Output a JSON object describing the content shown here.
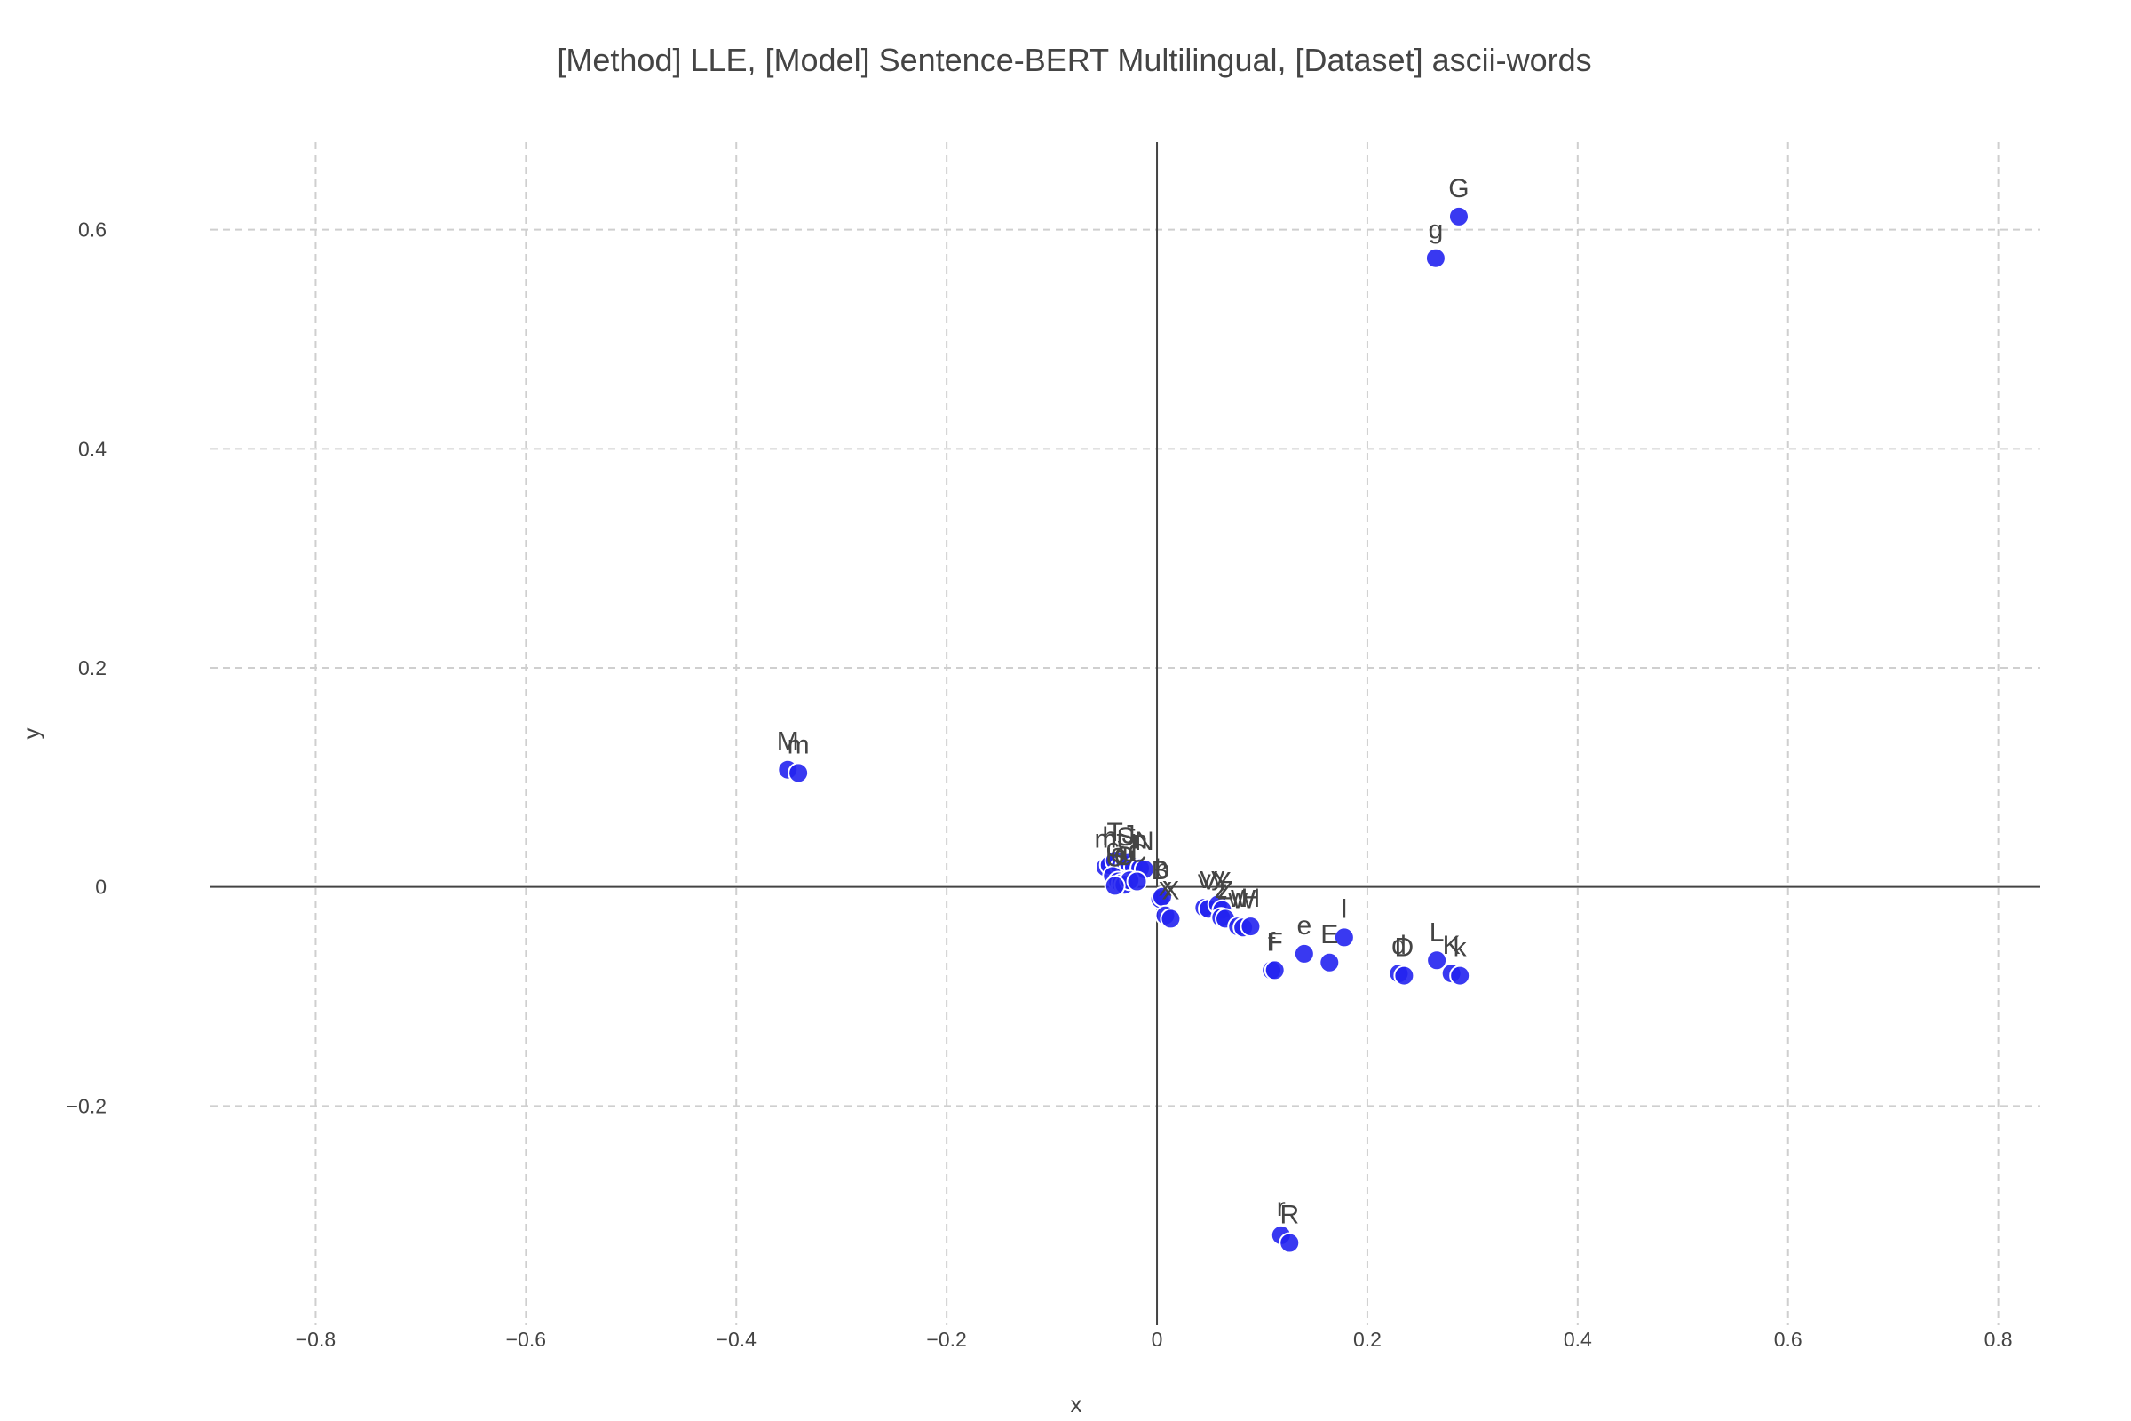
{
  "chart_data": {
    "type": "scatter",
    "title": "[Method] LLE, [Model] Sentence-BERT Multilingual, [Dataset] ascii-words",
    "xlabel": "x",
    "ylabel": "y",
    "xlim": [
      -0.9,
      0.84
    ],
    "ylim": [
      -0.4,
      0.68
    ],
    "x_ticks": [
      -0.8,
      -0.6,
      -0.4,
      -0.2,
      0,
      0.2,
      0.4,
      0.6,
      0.8
    ],
    "y_ticks": [
      -0.2,
      0,
      0.2,
      0.4,
      0.6
    ],
    "x_tick_labels": [
      "−0.8",
      "−0.6",
      "−0.4",
      "−0.2",
      "0",
      "0.2",
      "0.4",
      "0.6",
      "0.8"
    ],
    "y_tick_labels": [
      "−0.2",
      "0",
      "0.2",
      "0.4",
      "0.6"
    ],
    "grid": true,
    "legend": false,
    "marker_color": "#2323f0",
    "points": [
      {
        "label": "G",
        "x": 0.287,
        "y": 0.612
      },
      {
        "label": "g",
        "x": 0.265,
        "y": 0.574
      },
      {
        "label": "M",
        "x": -0.351,
        "y": 0.107
      },
      {
        "label": "m",
        "x": -0.341,
        "y": 0.104
      },
      {
        "label": "m",
        "x": -0.049,
        "y": 0.018
      },
      {
        "label": "h",
        "x": -0.045,
        "y": 0.02
      },
      {
        "label": "T",
        "x": -0.04,
        "y": 0.024
      },
      {
        "label": "t",
        "x": -0.035,
        "y": 0.018
      },
      {
        "label": "S",
        "x": -0.03,
        "y": 0.02
      },
      {
        "label": "J",
        "x": -0.027,
        "y": 0.022
      },
      {
        "label": "j",
        "x": -0.022,
        "y": 0.018
      },
      {
        "label": "n",
        "x": -0.016,
        "y": 0.017
      },
      {
        "label": "N",
        "x": -0.012,
        "y": 0.016
      },
      {
        "label": "c",
        "x": -0.042,
        "y": 0.01
      },
      {
        "label": "o",
        "x": -0.037,
        "y": 0.005
      },
      {
        "label": "s",
        "x": -0.034,
        "y": 0.003
      },
      {
        "label": "O",
        "x": -0.031,
        "y": 0.002
      },
      {
        "label": "u",
        "x": -0.026,
        "y": 0.006
      },
      {
        "label": "C",
        "x": -0.019,
        "y": 0.005
      },
      {
        "label": "U",
        "x": -0.04,
        "y": 0.001
      },
      {
        "label": "B",
        "x": 0.003,
        "y": -0.011
      },
      {
        "label": "b",
        "x": 0.005,
        "y": -0.009
      },
      {
        "label": "x",
        "x": 0.008,
        "y": -0.026
      },
      {
        "label": "X",
        "x": 0.013,
        "y": -0.029
      },
      {
        "label": "v",
        "x": 0.045,
        "y": -0.019
      },
      {
        "label": "V",
        "x": 0.049,
        "y": -0.02
      },
      {
        "label": "y",
        "x": 0.058,
        "y": -0.016
      },
      {
        "label": "Y",
        "x": 0.062,
        "y": -0.021
      },
      {
        "label": "z",
        "x": 0.061,
        "y": -0.028
      },
      {
        "label": "Z",
        "x": 0.065,
        "y": -0.029
      },
      {
        "label": "w",
        "x": 0.077,
        "y": -0.036
      },
      {
        "label": "W",
        "x": 0.082,
        "y": -0.037
      },
      {
        "label": "H",
        "x": 0.089,
        "y": -0.036
      },
      {
        "label": "f",
        "x": 0.109,
        "y": -0.076
      },
      {
        "label": "F",
        "x": 0.112,
        "y": -0.076
      },
      {
        "label": "e",
        "x": 0.14,
        "y": -0.061
      },
      {
        "label": "E",
        "x": 0.164,
        "y": -0.069
      },
      {
        "label": "l",
        "x": 0.178,
        "y": -0.046
      },
      {
        "label": "d",
        "x": 0.23,
        "y": -0.079
      },
      {
        "label": "D",
        "x": 0.235,
        "y": -0.081
      },
      {
        "label": "L",
        "x": 0.266,
        "y": -0.067
      },
      {
        "label": "K",
        "x": 0.28,
        "y": -0.079
      },
      {
        "label": "k",
        "x": 0.288,
        "y": -0.081
      },
      {
        "label": "r",
        "x": 0.118,
        "y": -0.318
      },
      {
        "label": "R",
        "x": 0.126,
        "y": -0.325
      }
    ]
  }
}
